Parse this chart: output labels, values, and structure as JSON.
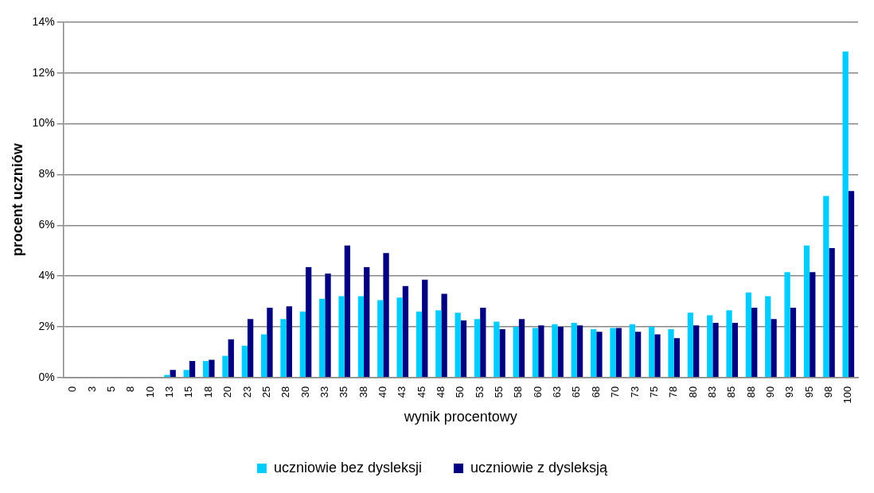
{
  "chart_data": {
    "type": "bar",
    "xlabel": "wynik procentowy",
    "ylabel": "procent uczniów",
    "categories": [
      "0",
      "3",
      "5",
      "8",
      "10",
      "13",
      "15",
      "18",
      "20",
      "23",
      "25",
      "28",
      "30",
      "33",
      "35",
      "38",
      "40",
      "43",
      "45",
      "48",
      "50",
      "53",
      "55",
      "58",
      "60",
      "63",
      "65",
      "68",
      "70",
      "73",
      "75",
      "78",
      "80",
      "83",
      "85",
      "88",
      "90",
      "93",
      "95",
      "98",
      "100"
    ],
    "series": [
      {
        "name": "uczniowie bez dysleksji",
        "color": "#00ccff",
        "values": [
          0,
          0,
          0,
          0,
          0,
          0.1,
          0.3,
          0.65,
          0.85,
          1.25,
          1.7,
          2.3,
          2.6,
          3.1,
          3.2,
          3.2,
          3.05,
          3.15,
          2.6,
          2.65,
          2.55,
          2.3,
          2.2,
          2.0,
          1.95,
          2.1,
          2.15,
          1.9,
          1.95,
          2.1,
          2.0,
          1.9,
          2.55,
          2.45,
          2.65,
          3.35,
          3.2,
          4.15,
          5.2,
          7.15,
          12.85
        ]
      },
      {
        "name": "uczniowie z dysleksją",
        "color": "#000080",
        "values": [
          0,
          0,
          0,
          0,
          0,
          0.3,
          0.65,
          0.7,
          1.5,
          2.3,
          2.75,
          2.8,
          4.35,
          4.1,
          5.2,
          4.35,
          4.9,
          3.6,
          3.85,
          3.3,
          2.25,
          2.75,
          1.9,
          2.3,
          2.05,
          2.0,
          2.05,
          1.8,
          1.95,
          1.8,
          1.7,
          1.55,
          2.05,
          2.15,
          2.15,
          2.75,
          2.3,
          2.75,
          4.15,
          5.1,
          7.35
        ]
      }
    ],
    "ylim": [
      0,
      14
    ],
    "yticks": [
      {
        "value": 0,
        "label": "0%"
      },
      {
        "value": 2,
        "label": "2%"
      },
      {
        "value": 4,
        "label": "4%"
      },
      {
        "value": 6,
        "label": "6%"
      },
      {
        "value": 8,
        "label": "8%"
      },
      {
        "value": 10,
        "label": "10%"
      },
      {
        "value": 12,
        "label": "12%"
      },
      {
        "value": 14,
        "label": "14%"
      }
    ],
    "grid": "y",
    "legend": "bottom"
  }
}
